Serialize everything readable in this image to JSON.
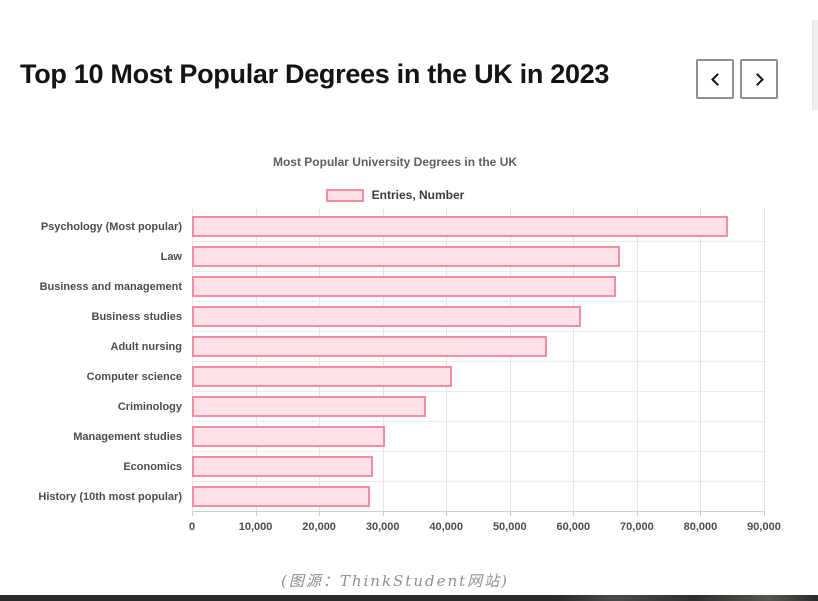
{
  "header": {
    "title": "Top 10 Most Popular Degrees in the UK in 2023",
    "nav": {
      "prev_icon": "chevron-left",
      "next_icon": "chevron-right"
    }
  },
  "chart_data": {
    "type": "bar",
    "orientation": "horizontal",
    "title": "Most Popular University Degrees in the UK",
    "legend_label": "Entries, Number",
    "legend_position": "top",
    "categories": [
      "Psychology (Most popular)",
      "Law",
      "Business and management",
      "Business studies",
      "Adult nursing",
      "Computer science",
      "Criminology",
      "Management studies",
      "Economics",
      "History (10th most popular)"
    ],
    "values": [
      84300,
      67400,
      66700,
      61200,
      55800,
      40900,
      36800,
      30300,
      28500,
      28000
    ],
    "series_name": "Entries, Number",
    "xlabel": "",
    "ylabel": "",
    "xlim": [
      0,
      90000
    ],
    "tick_values": [
      0,
      10000,
      20000,
      30000,
      40000,
      50000,
      60000,
      70000,
      80000,
      90000
    ],
    "tick_labels": [
      "0",
      "10,000",
      "20,000",
      "30,000",
      "40,000",
      "50,000",
      "60,000",
      "70,000",
      "80,000",
      "90,000"
    ],
    "grid": true,
    "colors": {
      "bar_fill": "#fde3e8",
      "bar_stroke": "#f58ca2",
      "gridline": "#e5e5e5",
      "axis_text": "#4d4d4d",
      "title_text": "#606060"
    }
  },
  "caption": "(图源：ThinkStudent网站)"
}
